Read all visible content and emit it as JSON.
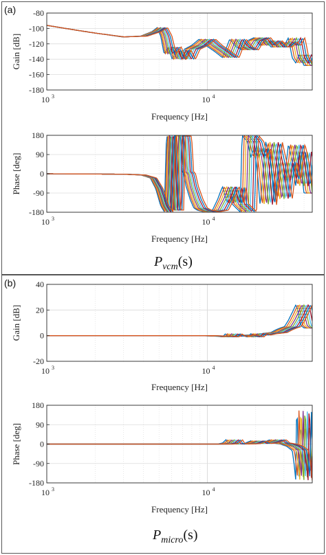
{
  "panels": [
    {
      "letter": "(a)",
      "caption_main": "P",
      "caption_sub": "vcm",
      "caption_arg": "(s)"
    },
    {
      "letter": "(b)",
      "caption_main": "P",
      "caption_sub": "micro",
      "caption_arg": "(s)"
    }
  ],
  "colors": [
    "#0072BD",
    "#D95319",
    "#EDB120",
    "#7E2F8E",
    "#77AC30",
    "#4DBEEE",
    "#A2142F"
  ],
  "chart_data": [
    {
      "type": "line",
      "panel": "(a)",
      "xlabel": "Frequency [Hz]",
      "ylabel": "Gain [dB]",
      "xscale": "log",
      "xlim": [
        1000,
        45000
      ],
      "ylim": [
        -180,
        -80
      ],
      "yticks": [
        -80,
        -100,
        -120,
        -140,
        -160,
        -180
      ],
      "xticklabels": [
        "10",
        "10"
      ],
      "xtick_exponents": [
        "3",
        "4"
      ],
      "grid": true,
      "series_count": 9,
      "x": [
        1000,
        1500,
        2000,
        3000,
        4000,
        4800,
        5200,
        5500,
        5800,
        6200,
        6600,
        7000,
        7500,
        8000,
        9000,
        10000,
        11000,
        12500,
        14000,
        15500,
        17000,
        18500,
        20000,
        22000,
        24000,
        26000,
        28000,
        30000,
        32000,
        34000,
        36000,
        38000,
        40000,
        42000,
        45000
      ],
      "y": [
        -96,
        -102,
        -106,
        -111,
        -110,
        -104,
        -99,
        -110,
        -133,
        -124,
        -140,
        -128,
        -140,
        -127,
        -122,
        -114,
        -122,
        -130,
        -138,
        -114,
        -124,
        -128,
        -116,
        -112,
        -122,
        -116,
        -124,
        -124,
        -118,
        -122,
        -112,
        -138,
        -145,
        -134,
        -148
      ]
    },
    {
      "type": "line",
      "panel": "(a)",
      "xlabel": "Frequency [Hz]",
      "ylabel": "Phase [deg]",
      "xscale": "log",
      "xlim": [
        1000,
        45000
      ],
      "ylim": [
        -180,
        180
      ],
      "yticks": [
        180,
        90,
        0,
        -90,
        -180
      ],
      "xticklabels": [
        "10",
        "10"
      ],
      "xtick_exponents": [
        "3",
        "4"
      ],
      "grid": true,
      "series_count": 9,
      "x": [
        1000,
        3000,
        4000,
        4600,
        5000,
        5400,
        5700,
        5900,
        6000,
        6300,
        6600,
        6700,
        7300,
        7500,
        7700,
        8000,
        8500,
        9000,
        9500,
        10500,
        12000,
        13000,
        14000,
        15000,
        15500,
        16000,
        17000,
        18000,
        18500,
        20000,
        21000,
        22000,
        23000,
        24000,
        26000,
        28000,
        30000,
        32000,
        34000,
        36000,
        38000,
        40000,
        42000,
        45000
      ],
      "y": [
        0,
        -2,
        -6,
        -20,
        -70,
        -150,
        -178,
        180,
        170,
        -170,
        -170,
        180,
        175,
        10,
        0,
        -60,
        -120,
        -160,
        -170,
        -178,
        -170,
        -120,
        -60,
        -140,
        -60,
        -140,
        -160,
        -178,
        180,
        150,
        80,
        120,
        20,
        -150,
        150,
        40,
        -120,
        60,
        -30,
        140,
        60,
        -60,
        110,
        -90
      ]
    },
    {
      "type": "line",
      "panel": "(b)",
      "xlabel": "Frequency [Hz]",
      "ylabel": "Gain [dB]",
      "xscale": "log",
      "xlim": [
        1000,
        45000
      ],
      "ylim": [
        -20,
        40
      ],
      "yticks": [
        40,
        20,
        0,
        -20
      ],
      "xticklabels": [
        "10",
        "10"
      ],
      "xtick_exponents": [
        "3",
        "4"
      ],
      "grid": true,
      "series_count": 9,
      "x": [
        1000,
        5000,
        10000,
        13000,
        14000,
        14600,
        15200,
        16000,
        18000,
        20000,
        21000,
        22000,
        24000,
        26000,
        28000,
        30000,
        32000,
        34000,
        36000,
        38000,
        40000,
        41000,
        42000,
        43000,
        45000
      ],
      "y": [
        0,
        0,
        0,
        -0.5,
        -1,
        1.5,
        -0.5,
        0,
        0.5,
        -1,
        1.5,
        0.5,
        1.5,
        2,
        2.5,
        4.5,
        6,
        7,
        12,
        18,
        24,
        21,
        14,
        8,
        6
      ]
    },
    {
      "type": "line",
      "panel": "(b)",
      "xlabel": "Frequency [Hz]",
      "ylabel": "Phase [deg]",
      "xscale": "log",
      "xlim": [
        1000,
        45000
      ],
      "ylim": [
        -180,
        180
      ],
      "yticks": [
        180,
        90,
        0,
        -90,
        -180
      ],
      "xticklabels": [
        "10",
        "10"
      ],
      "xtick_exponents": [
        "3",
        "4"
      ],
      "grid": true,
      "series_count": 9,
      "x": [
        1000,
        10000,
        13000,
        14000,
        14700,
        15200,
        16000,
        19000,
        21000,
        22000,
        24000,
        26000,
        27500,
        29000,
        32000,
        35000,
        38000,
        39000,
        40000,
        40500,
        41000,
        41500,
        42000,
        43000,
        45000
      ],
      "y": [
        0,
        0,
        0,
        5,
        20,
        2,
        0,
        2,
        15,
        3,
        5,
        12,
        20,
        5,
        0,
        -10,
        -30,
        -90,
        -170,
        180,
        100,
        -90,
        -170,
        100,
        -120
      ]
    }
  ]
}
